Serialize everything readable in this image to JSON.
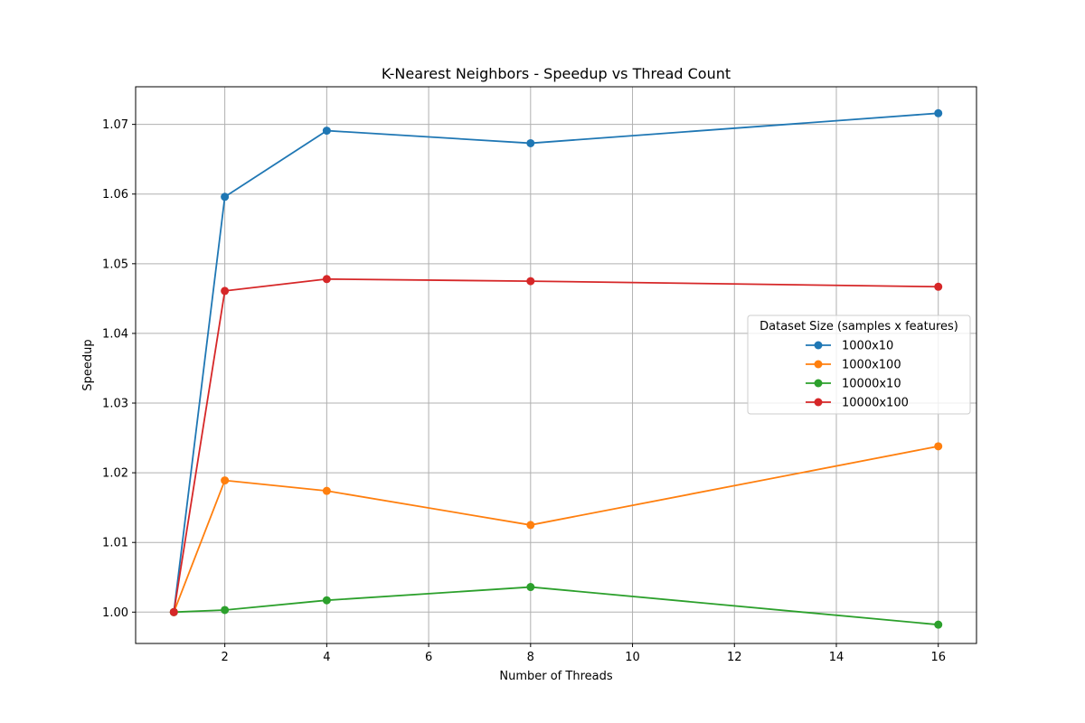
{
  "chart_data": {
    "type": "line",
    "title": "K-Nearest Neighbors - Speedup vs Thread Count",
    "xlabel": "Number of Threads",
    "ylabel": "Speedup",
    "x": [
      1,
      2,
      4,
      8,
      16
    ],
    "xlim": [
      0.25,
      16.75
    ],
    "ylim": [
      0.9955,
      1.0754
    ],
    "xticks": [
      2,
      4,
      6,
      8,
      10,
      12,
      14,
      16
    ],
    "xtick_labels": [
      "2",
      "4",
      "6",
      "8",
      "10",
      "12",
      "14",
      "16"
    ],
    "yticks": [
      1.0,
      1.01,
      1.02,
      1.03,
      1.04,
      1.05,
      1.06,
      1.07
    ],
    "ytick_labels": [
      "1.00",
      "1.01",
      "1.02",
      "1.03",
      "1.04",
      "1.05",
      "1.06",
      "1.07"
    ],
    "grid": true,
    "legend_title": "Dataset Size (samples x features)",
    "legend_position": "center-right",
    "series": [
      {
        "name": "1000x10",
        "color": "#1f77b4",
        "values": [
          1.0,
          1.0596,
          1.0691,
          1.0673,
          1.0716
        ]
      },
      {
        "name": "1000x100",
        "color": "#ff7f0e",
        "values": [
          1.0,
          1.0189,
          1.0174,
          1.0125,
          1.0238
        ]
      },
      {
        "name": "10000x10",
        "color": "#2ca02c",
        "values": [
          1.0,
          1.0003,
          1.0017,
          1.0036,
          0.9982
        ]
      },
      {
        "name": "10000x100",
        "color": "#d62728",
        "values": [
          1.0,
          1.0461,
          1.0478,
          1.0475,
          1.0467
        ]
      }
    ]
  }
}
